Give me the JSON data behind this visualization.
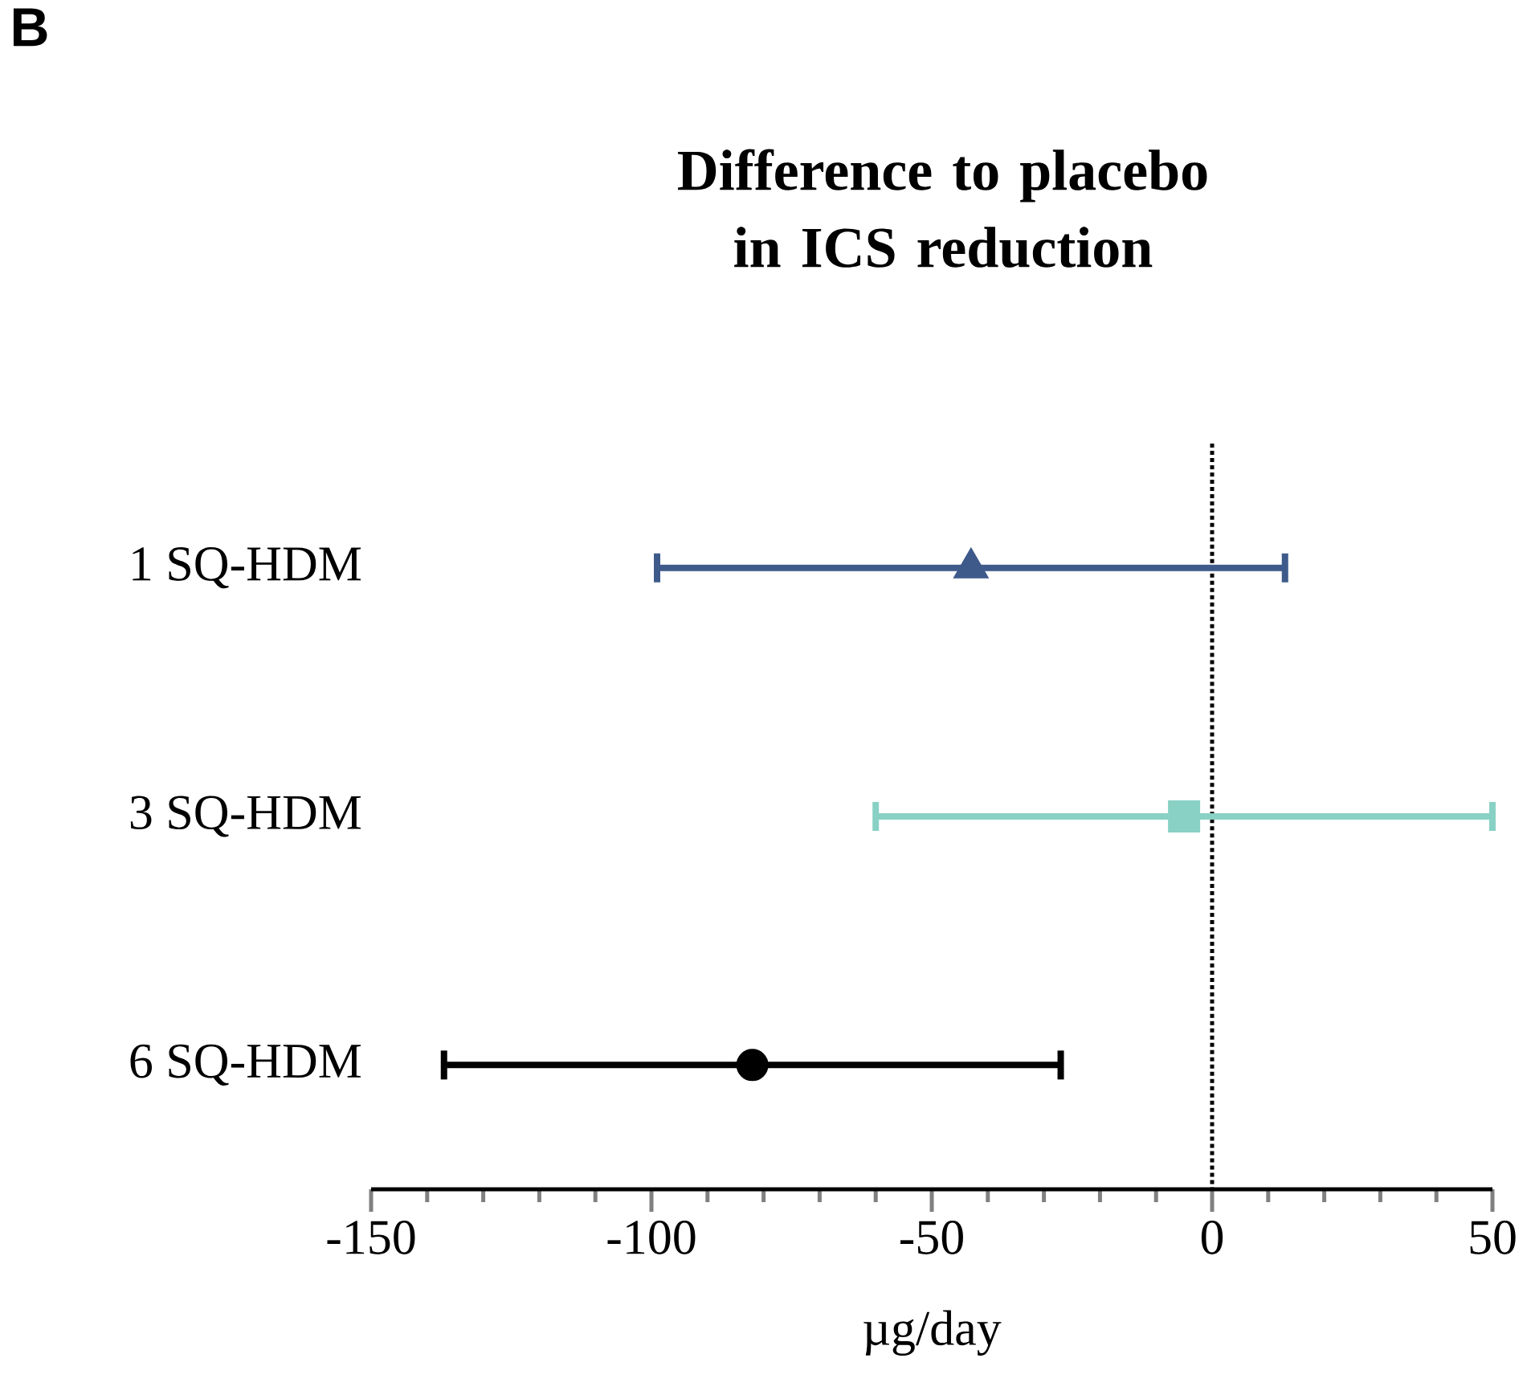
{
  "chart_data": {
    "type": "scatter",
    "orientation": "horizontal",
    "title": "Difference to placebo in ICS reduction",
    "xlabel": "µg/day",
    "annotations": [
      "B"
    ],
    "categories": [
      "1 SQ-HDM",
      "3 SQ-HDM",
      "6 SQ-HDM"
    ],
    "series": [
      {
        "color": "#3d5a8a",
        "marker": "triangle",
        "values": [
          -43,
          null,
          null
        ],
        "errors": [
          [
            -99,
            13
          ],
          null,
          null
        ]
      },
      {
        "color": "#88d1c4",
        "marker": "square",
        "values": [
          null,
          -5,
          null
        ],
        "errors": [
          null,
          [
            -60,
            50
          ],
          null
        ]
      },
      {
        "color": "#000000",
        "marker": "circle",
        "values": [
          null,
          null,
          -82
        ],
        "errors": [
          null,
          null,
          [
            -137,
            -27
          ]
        ]
      }
    ],
    "xlim": [
      -150,
      50
    ],
    "xticks": [
      -150,
      -100,
      -50,
      0,
      50
    ],
    "ref_lines": [
      {
        "axis": "x",
        "value": 0,
        "color": "#000000",
        "line_style": "dotted"
      }
    ]
  }
}
